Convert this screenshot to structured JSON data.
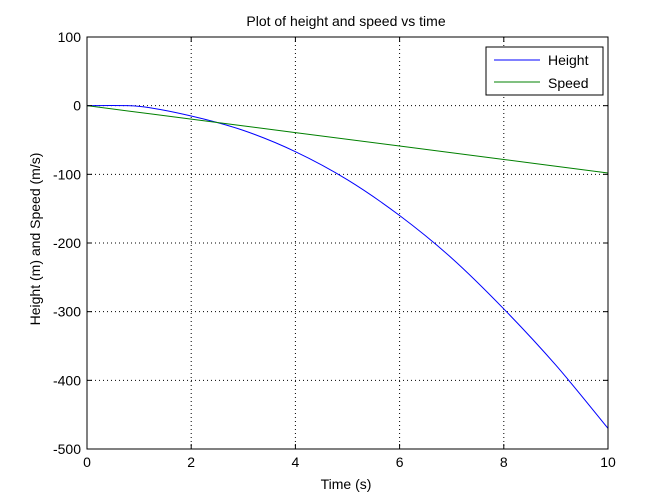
{
  "chart_data": {
    "type": "line",
    "title": "Plot of height and speed vs time",
    "xlabel": "Time (s)",
    "ylabel": "Height (m) and Speed (m/s)",
    "xlim": [
      0,
      10
    ],
    "ylim": [
      -500,
      100
    ],
    "xticks": [
      0,
      2,
      4,
      6,
      8,
      10
    ],
    "yticks": [
      -500,
      -400,
      -300,
      -200,
      -100,
      0,
      100
    ],
    "grid": true,
    "grid_style": "dotted",
    "legend_position": "top-right",
    "series": [
      {
        "name": "Height",
        "color": "#0000ff",
        "function": "height",
        "sample": {
          "x": [
            0,
            1,
            2,
            3,
            4,
            5,
            6,
            7,
            8,
            9,
            10
          ],
          "y": [
            0,
            -1,
            -15,
            -36,
            -67,
            -108,
            -160,
            -222,
            -296,
            -378,
            -470
          ]
        }
      },
      {
        "name": "Speed",
        "color": "#008000",
        "function": "speed",
        "sample": {
          "x": [
            0,
            2,
            4,
            6,
            8,
            10
          ],
          "y": [
            0,
            -19.6,
            -39.2,
            -58.8,
            -78.4,
            -98
          ]
        }
      }
    ]
  }
}
